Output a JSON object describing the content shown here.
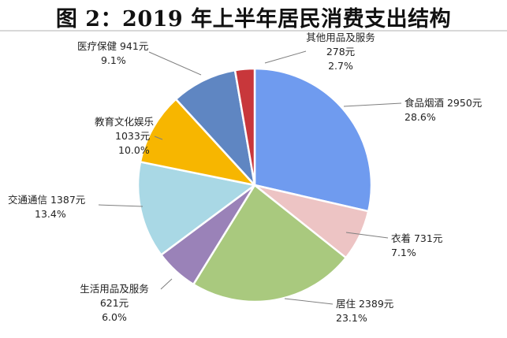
{
  "chart_data": {
    "type": "pie",
    "title": "图 2：2019 年上半年居民消费支出结构",
    "start_angle_deg": 0,
    "direction": "clockwise",
    "slices": [
      {
        "name": "食品烟酒",
        "amount": 2950,
        "amount_label": "2950元",
        "percent": 28.6,
        "percent_label": "28.6%",
        "color": "#6f9bef"
      },
      {
        "name": "衣着",
        "amount": 731,
        "amount_label": "731元",
        "percent": 7.1,
        "percent_label": "7.1%",
        "color": "#edc4c4"
      },
      {
        "name": "居住",
        "amount": 2389,
        "amount_label": "2389元",
        "percent": 23.1,
        "percent_label": "23.1%",
        "color": "#a9c97e"
      },
      {
        "name": "生活用品及服务",
        "amount": 621,
        "amount_label": "621元",
        "percent": 6.0,
        "percent_label": "6.0%",
        "color": "#9a82b8"
      },
      {
        "name": "交通通信",
        "amount": 1387,
        "amount_label": "1387元",
        "percent": 13.4,
        "percent_label": "13.4%",
        "color": "#a9d8e5"
      },
      {
        "name": "教育文化娱乐",
        "amount": 1033,
        "amount_label": "1033元",
        "percent": 10.0,
        "percent_label": "10.0%",
        "color": "#f7b600"
      },
      {
        "name": "医疗保健",
        "amount": 941,
        "amount_label": "941元",
        "percent": 9.1,
        "percent_label": "9.1%",
        "color": "#5f86c2"
      },
      {
        "name": "其他用品及服务",
        "amount": 278,
        "amount_label": "278元",
        "percent": 2.7,
        "percent_label": "2.7%",
        "color": "#c8373b"
      }
    ]
  }
}
